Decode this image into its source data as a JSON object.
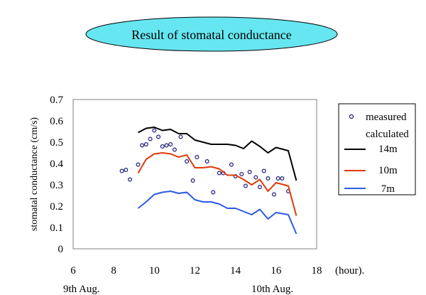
{
  "banner": {
    "title": "Result of stomatal conductance",
    "fill": "#66e6f0"
  },
  "chart_data": {
    "type": "scatter",
    "title": "Result of stomatal conductance",
    "xlabel": "(hour).",
    "ylabel": "stomatal conductance  (cm/s)",
    "xlim": [
      6,
      18
    ],
    "ylim": [
      0,
      0.7
    ],
    "xticks": [
      "6",
      "8",
      "10",
      "12",
      "14",
      "16",
      "18"
    ],
    "yticks": [
      "0",
      "0.1",
      "0.2",
      "0.3",
      "0.4",
      "0.5",
      "0.6",
      "0.7"
    ],
    "date_labels": [
      {
        "text": "9th Aug."
      },
      {
        "text": "10th Aug."
      }
    ],
    "legend": {
      "position": "right",
      "measured_label": "measured",
      "calculated_label": "calculated"
    },
    "series": [
      {
        "name": "measured",
        "kind": "points",
        "color": "#1a1a7a",
        "x": [
          8.4,
          8.6,
          8.8,
          9.2,
          9.4,
          9.6,
          9.8,
          10.0,
          10.2,
          10.4,
          10.6,
          10.8,
          11.0,
          11.3,
          11.6,
          11.9,
          12.1,
          12.6,
          12.9,
          13.2,
          13.4,
          13.8,
          14.0,
          14.3,
          14.5,
          14.7,
          15.0,
          15.2,
          15.4,
          15.6,
          15.9,
          16.1,
          16.3,
          16.6
        ],
        "y": [
          0.365,
          0.37,
          0.325,
          0.395,
          0.485,
          0.49,
          0.515,
          0.555,
          0.525,
          0.48,
          0.485,
          0.49,
          0.465,
          0.525,
          0.41,
          0.32,
          0.43,
          0.41,
          0.265,
          0.355,
          0.355,
          0.395,
          0.34,
          0.35,
          0.295,
          0.36,
          0.335,
          0.29,
          0.365,
          0.33,
          0.255,
          0.33,
          0.33,
          0.27
        ]
      },
      {
        "name": "14m",
        "kind": "line",
        "color": "#000000",
        "x": [
          9.2,
          9.6,
          10.0,
          10.4,
          10.8,
          11.2,
          11.6,
          12.0,
          12.4,
          12.8,
          13.2,
          13.6,
          14.0,
          14.4,
          14.8,
          15.2,
          15.6,
          16.0,
          16.6,
          17.0
        ],
        "y": [
          0.545,
          0.565,
          0.57,
          0.555,
          0.56,
          0.54,
          0.54,
          0.51,
          0.5,
          0.49,
          0.49,
          0.49,
          0.485,
          0.47,
          0.505,
          0.48,
          0.45,
          0.475,
          0.46,
          0.32
        ]
      },
      {
        "name": "10m",
        "kind": "line",
        "color": "#e03a0a",
        "x": [
          9.2,
          9.6,
          10.0,
          10.4,
          10.8,
          11.2,
          11.6,
          12.0,
          12.4,
          12.8,
          13.2,
          13.6,
          14.0,
          14.4,
          14.8,
          15.2,
          15.6,
          16.0,
          16.6,
          17.0
        ],
        "y": [
          0.355,
          0.42,
          0.445,
          0.45,
          0.445,
          0.43,
          0.44,
          0.38,
          0.38,
          0.385,
          0.375,
          0.345,
          0.345,
          0.325,
          0.3,
          0.325,
          0.27,
          0.31,
          0.295,
          0.155
        ]
      },
      {
        "name": "7m",
        "kind": "line",
        "color": "#2a5ae8",
        "x": [
          9.2,
          9.6,
          10.0,
          10.4,
          10.8,
          11.2,
          11.6,
          12.0,
          12.4,
          12.8,
          13.2,
          13.6,
          14.0,
          14.4,
          14.8,
          15.2,
          15.6,
          16.0,
          16.6,
          17.0
        ],
        "y": [
          0.19,
          0.22,
          0.255,
          0.265,
          0.27,
          0.26,
          0.265,
          0.23,
          0.22,
          0.22,
          0.21,
          0.19,
          0.19,
          0.175,
          0.16,
          0.185,
          0.14,
          0.17,
          0.16,
          0.07
        ]
      }
    ],
    "legend_entries": [
      "measured",
      "calculated",
      "14m",
      "10m",
      " 7m"
    ]
  }
}
